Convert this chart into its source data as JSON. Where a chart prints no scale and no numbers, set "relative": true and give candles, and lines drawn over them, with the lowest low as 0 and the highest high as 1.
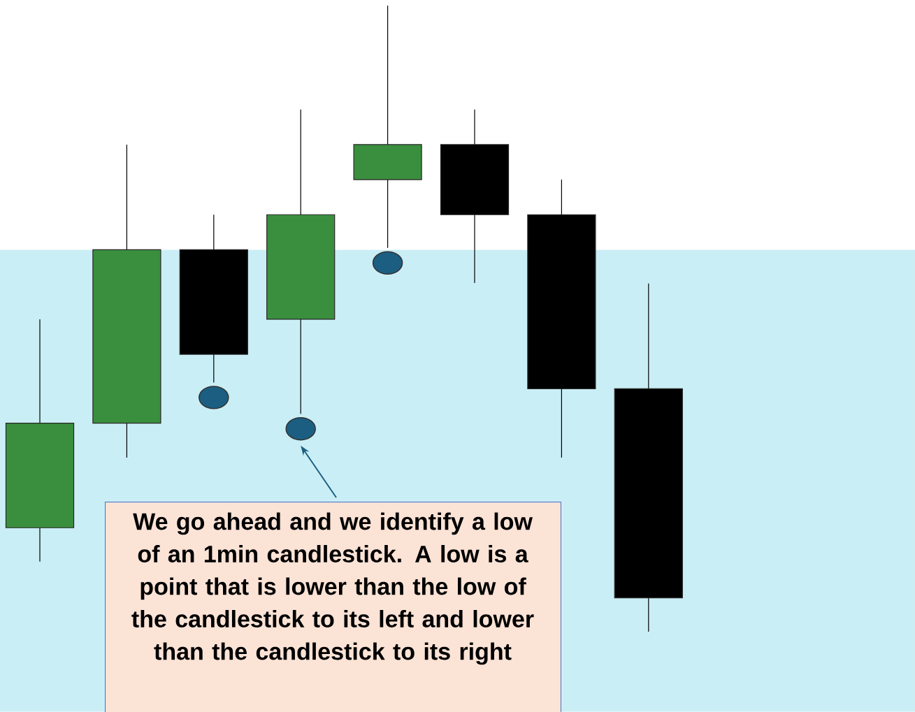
{
  "chart_data": {
    "type": "candlestick",
    "relative": true,
    "categories": [
      null,
      null,
      null,
      null,
      null,
      null,
      null,
      null
    ],
    "series": [
      {
        "colors": [
          "#3a8f3e",
          "#3a8f3e",
          "#000000",
          "#3a8f3e",
          "#3a8f3e",
          "#000000",
          "#000000",
          "#000000"
        ],
        "ohlc": [
          [
            0.166,
            0.499,
            0.112,
            0.333
          ],
          [
            0.333,
            0.778,
            0.278,
            0.61
          ],
          [
            0.61,
            0.666,
            0.398,
            0.443
          ],
          [
            0.499,
            0.834,
            0.348,
            0.666
          ],
          [
            0.722,
            1,
            0.613,
            0.778
          ],
          [
            0.778,
            0.834,
            0.557,
            0.666
          ],
          [
            0.666,
            0.722,
            0.278,
            0.388
          ],
          [
            0.388,
            0.556,
            0,
            0.054
          ]
        ]
      },
      {
        "type": "scatter",
        "marker": "circle",
        "color": "#1b5e82",
        "values": [
          null,
          null,
          0.374,
          0.324,
          0.589,
          null,
          null,
          null
        ]
      }
    ],
    "bands": [
      {
        "axis": "y",
        "from": -0.128,
        "to": 0.61,
        "color": "#caeef5"
      }
    ],
    "annotations": [
      "We go ahead and we identify a low of an 1min candlestick. A low is a point that is lower than the low of the candlestick to its left and lower than the candlestick to its right"
    ]
  }
}
